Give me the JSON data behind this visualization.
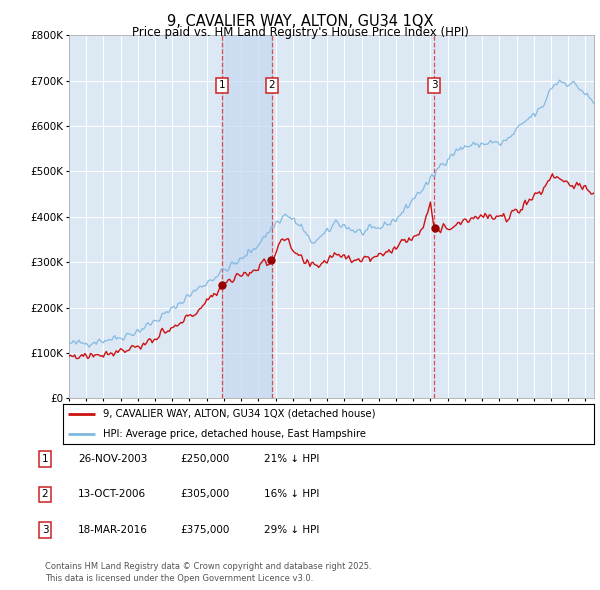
{
  "title1": "9, CAVALIER WAY, ALTON, GU34 1QX",
  "title2": "Price paid vs. HM Land Registry's House Price Index (HPI)",
  "title_fontsize": 10.5,
  "subtitle_fontsize": 8.5,
  "background_color": "#ffffff",
  "plot_bg_color": "#dde8f5",
  "grid_color": "#ffffff",
  "hpi_color": "#7fb8e0",
  "price_color": "#cc1111",
  "sale_marker_color": "#990000",
  "vline_color": "#dd3333",
  "ylim": [
    0,
    800000
  ],
  "yticks": [
    0,
    100000,
    200000,
    300000,
    400000,
    500000,
    600000,
    700000,
    800000
  ],
  "ytick_labels": [
    "£0",
    "£100K",
    "£200K",
    "£300K",
    "£400K",
    "£500K",
    "£600K",
    "£700K",
    "£800K"
  ],
  "xstart": 1995.0,
  "xend": 2025.5,
  "sales": [
    {
      "num": 1,
      "date": 2003.9,
      "price": 250000
    },
    {
      "num": 2,
      "date": 2006.79,
      "price": 305000
    },
    {
      "num": 3,
      "date": 2016.21,
      "price": 375000
    }
  ],
  "legend_entries": [
    "9, CAVALIER WAY, ALTON, GU34 1QX (detached house)",
    "HPI: Average price, detached house, East Hampshire"
  ],
  "table_rows": [
    {
      "num": 1,
      "date_str": "26-NOV-2003",
      "price_str": "£250,000",
      "hpi_str": "21% ↓ HPI"
    },
    {
      "num": 2,
      "date_str": "13-OCT-2006",
      "price_str": "£305,000",
      "hpi_str": "16% ↓ HPI"
    },
    {
      "num": 3,
      "date_str": "18-MAR-2016",
      "price_str": "£375,000",
      "hpi_str": "29% ↓ HPI"
    }
  ],
  "footnote": "Contains HM Land Registry data © Crown copyright and database right 2025.\nThis data is licensed under the Open Government Licence v3.0."
}
